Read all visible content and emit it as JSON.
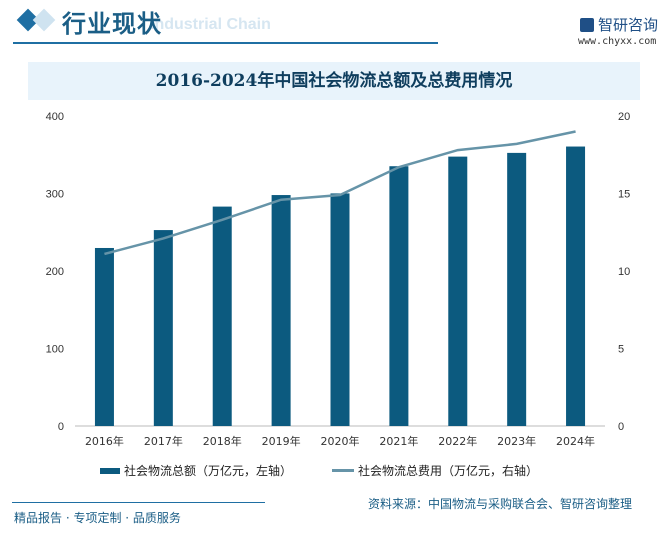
{
  "header": {
    "title": "行业现状",
    "subtitle": "Industrial Chain",
    "logo_text": "智研咨询",
    "logo_url": "www.chyxx.com"
  },
  "chart_data": {
    "type": "bar+line",
    "title": "2016-2024年中国社会物流总额及总费用情况",
    "categories": [
      "2016年",
      "2017年",
      "2018年",
      "2019年",
      "2020年",
      "2021年",
      "2022年",
      "2023年",
      "2024年"
    ],
    "series": [
      {
        "name": "社会物流总额（万亿元，左轴）",
        "type": "bar",
        "axis": "left",
        "color": "#0c5a7f",
        "values": [
          229.7,
          252.8,
          283.1,
          298.0,
          300.1,
          335.2,
          347.6,
          352.4,
          360.6
        ]
      },
      {
        "name": "社会物流总费用（万亿元，右轴）",
        "type": "line",
        "axis": "right",
        "color": "#6694a8",
        "values": [
          11.1,
          12.1,
          13.3,
          14.6,
          14.9,
          16.7,
          17.8,
          18.2,
          19.0
        ]
      }
    ],
    "y_left": {
      "range": [
        0,
        400
      ],
      "ticks": [
        "0",
        "100",
        "200",
        "300",
        "400"
      ]
    },
    "y_right": {
      "range": [
        0,
        20
      ],
      "ticks": [
        "0",
        "5",
        "10",
        "15",
        "20"
      ]
    },
    "grid": false,
    "legend": "bottom"
  },
  "footer": {
    "source": "资料来源：中国物流与采购联合会、智研咨询整理",
    "slogan": "精品报告 · 专项定制 · 品质服务"
  }
}
